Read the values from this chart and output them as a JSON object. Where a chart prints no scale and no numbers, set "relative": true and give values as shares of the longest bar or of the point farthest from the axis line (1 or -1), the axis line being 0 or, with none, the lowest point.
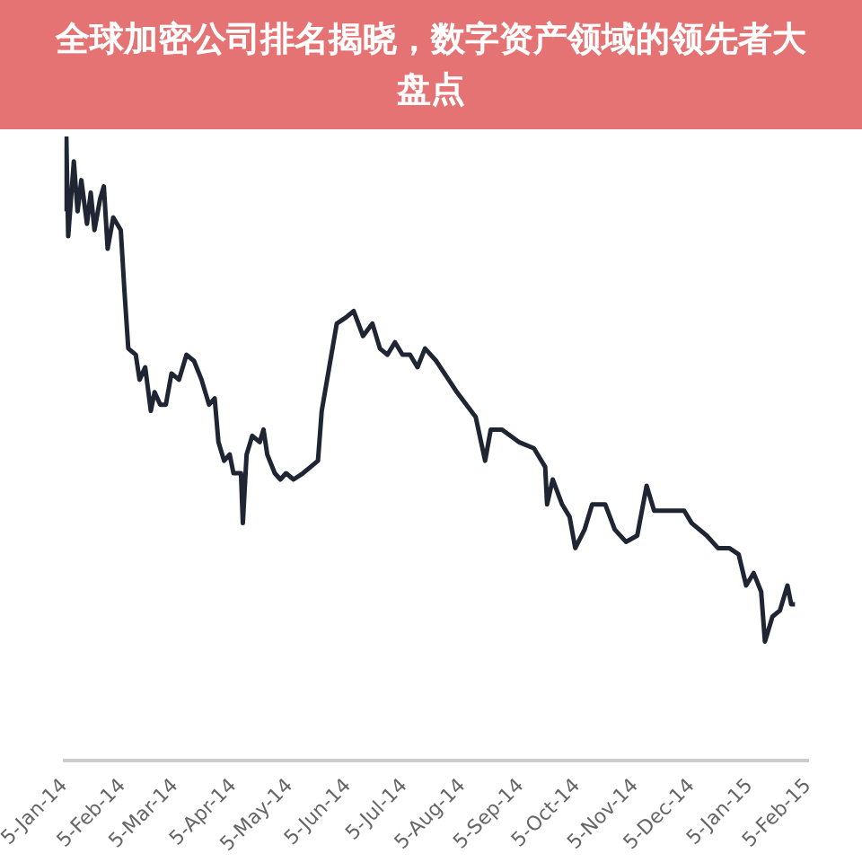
{
  "chart_data": {
    "type": "line",
    "title": "全球加密公司排名揭晓，数字资产领域的领先者大盘点",
    "relative": true,
    "legend": false,
    "grid": false,
    "marker": "none",
    "line_style": "solid",
    "xlim": [
      "2014-01-05",
      "2015-02-05"
    ],
    "xticks": [
      {
        "value": "2014-01-05",
        "label": "5-Jan-14"
      },
      {
        "value": "2014-02-05",
        "label": "5-Feb-14"
      },
      {
        "value": "2014-03-05",
        "label": "5-Mar-14"
      },
      {
        "value": "2014-04-05",
        "label": "5-Apr-14"
      },
      {
        "value": "2014-05-05",
        "label": "5-May-14"
      },
      {
        "value": "2014-06-05",
        "label": "5-Jun-14"
      },
      {
        "value": "2014-07-05",
        "label": "5-Jul-14"
      },
      {
        "value": "2014-08-05",
        "label": "5-Aug-14"
      },
      {
        "value": "2014-09-05",
        "label": "5-Sep-14"
      },
      {
        "value": "2014-10-05",
        "label": "5-Oct-14"
      },
      {
        "value": "2014-11-05",
        "label": "5-Nov-14"
      },
      {
        "value": "2014-12-05",
        "label": "5-Dec-14"
      },
      {
        "value": "2015-01-05",
        "label": "5-Jan-15"
      },
      {
        "value": "2015-02-05",
        "label": "5-Feb-15"
      }
    ],
    "x": [
      "2014-01-05",
      "2014-01-06",
      "2014-01-07",
      "2014-01-10",
      "2014-01-12",
      "2014-01-14",
      "2014-01-17",
      "2014-01-19",
      "2014-01-21",
      "2014-01-24",
      "2014-01-26",
      "2014-01-28",
      "2014-01-31",
      "2014-02-04",
      "2014-02-06",
      "2014-02-08",
      "2014-02-12",
      "2014-02-14",
      "2014-02-17",
      "2014-02-20",
      "2014-02-22",
      "2014-02-25",
      "2014-02-28",
      "2014-03-03",
      "2014-03-07",
      "2014-03-11",
      "2014-03-15",
      "2014-03-19",
      "2014-03-23",
      "2014-03-26",
      "2014-03-28",
      "2014-03-31",
      "2014-04-03",
      "2014-04-05",
      "2014-04-09",
      "2014-04-10",
      "2014-04-12",
      "2014-04-15",
      "2014-04-19",
      "2014-04-21",
      "2014-04-23",
      "2014-04-27",
      "2014-04-30",
      "2014-05-03",
      "2014-05-07",
      "2014-05-12",
      "2014-05-16",
      "2014-05-20",
      "2014-05-22",
      "2014-05-26",
      "2014-05-30",
      "2014-06-04",
      "2014-06-08",
      "2014-06-13",
      "2014-06-18",
      "2014-06-22",
      "2014-06-26",
      "2014-06-30",
      "2014-07-04",
      "2014-07-08",
      "2014-07-12",
      "2014-07-16",
      "2014-07-22",
      "2014-08-02",
      "2014-08-12",
      "2014-08-17",
      "2014-08-20",
      "2014-08-26",
      "2014-09-04",
      "2014-09-12",
      "2014-09-18",
      "2014-09-19",
      "2014-09-22",
      "2014-09-27",
      "2014-10-01",
      "2014-10-04",
      "2014-10-09",
      "2014-10-13",
      "2014-10-20",
      "2014-10-25",
      "2014-10-31",
      "2014-11-06",
      "2014-11-11",
      "2014-11-15",
      "2014-11-22",
      "2014-12-01",
      "2014-12-05",
      "2014-12-13",
      "2014-12-19",
      "2014-12-25",
      "2014-12-30",
      "2015-01-03",
      "2015-01-07",
      "2015-01-11",
      "2015-01-13",
      "2015-01-17",
      "2015-01-21",
      "2015-01-25",
      "2015-01-27",
      "2015-01-29"
    ],
    "series": [
      {
        "color": "#1f2533",
        "values": [
          0.88,
          1,
          0.84,
          0.96,
          0.88,
          0.93,
          0.86,
          0.91,
          0.85,
          0.9,
          0.92,
          0.82,
          0.87,
          0.85,
          0.75,
          0.66,
          0.65,
          0.61,
          0.63,
          0.56,
          0.59,
          0.57,
          0.57,
          0.62,
          0.61,
          0.65,
          0.64,
          0.61,
          0.57,
          0.58,
          0.51,
          0.48,
          0.49,
          0.46,
          0.46,
          0.38,
          0.49,
          0.52,
          0.51,
          0.53,
          0.49,
          0.46,
          0.45,
          0.46,
          0.45,
          0.46,
          0.47,
          0.48,
          0.56,
          0.63,
          0.7,
          0.71,
          0.72,
          0.68,
          0.7,
          0.66,
          0.65,
          0.67,
          0.65,
          0.65,
          0.63,
          0.66,
          0.64,
          0.59,
          0.55,
          0.48,
          0.53,
          0.53,
          0.51,
          0.5,
          0.47,
          0.41,
          0.45,
          0.41,
          0.39,
          0.34,
          0.37,
          0.41,
          0.41,
          0.37,
          0.35,
          0.36,
          0.44,
          0.4,
          0.4,
          0.4,
          0.38,
          0.36,
          0.34,
          0.34,
          0.33,
          0.28,
          0.3,
          0.27,
          0.19,
          0.23,
          0.24,
          0.28,
          0.25,
          0.25
        ]
      }
    ]
  }
}
